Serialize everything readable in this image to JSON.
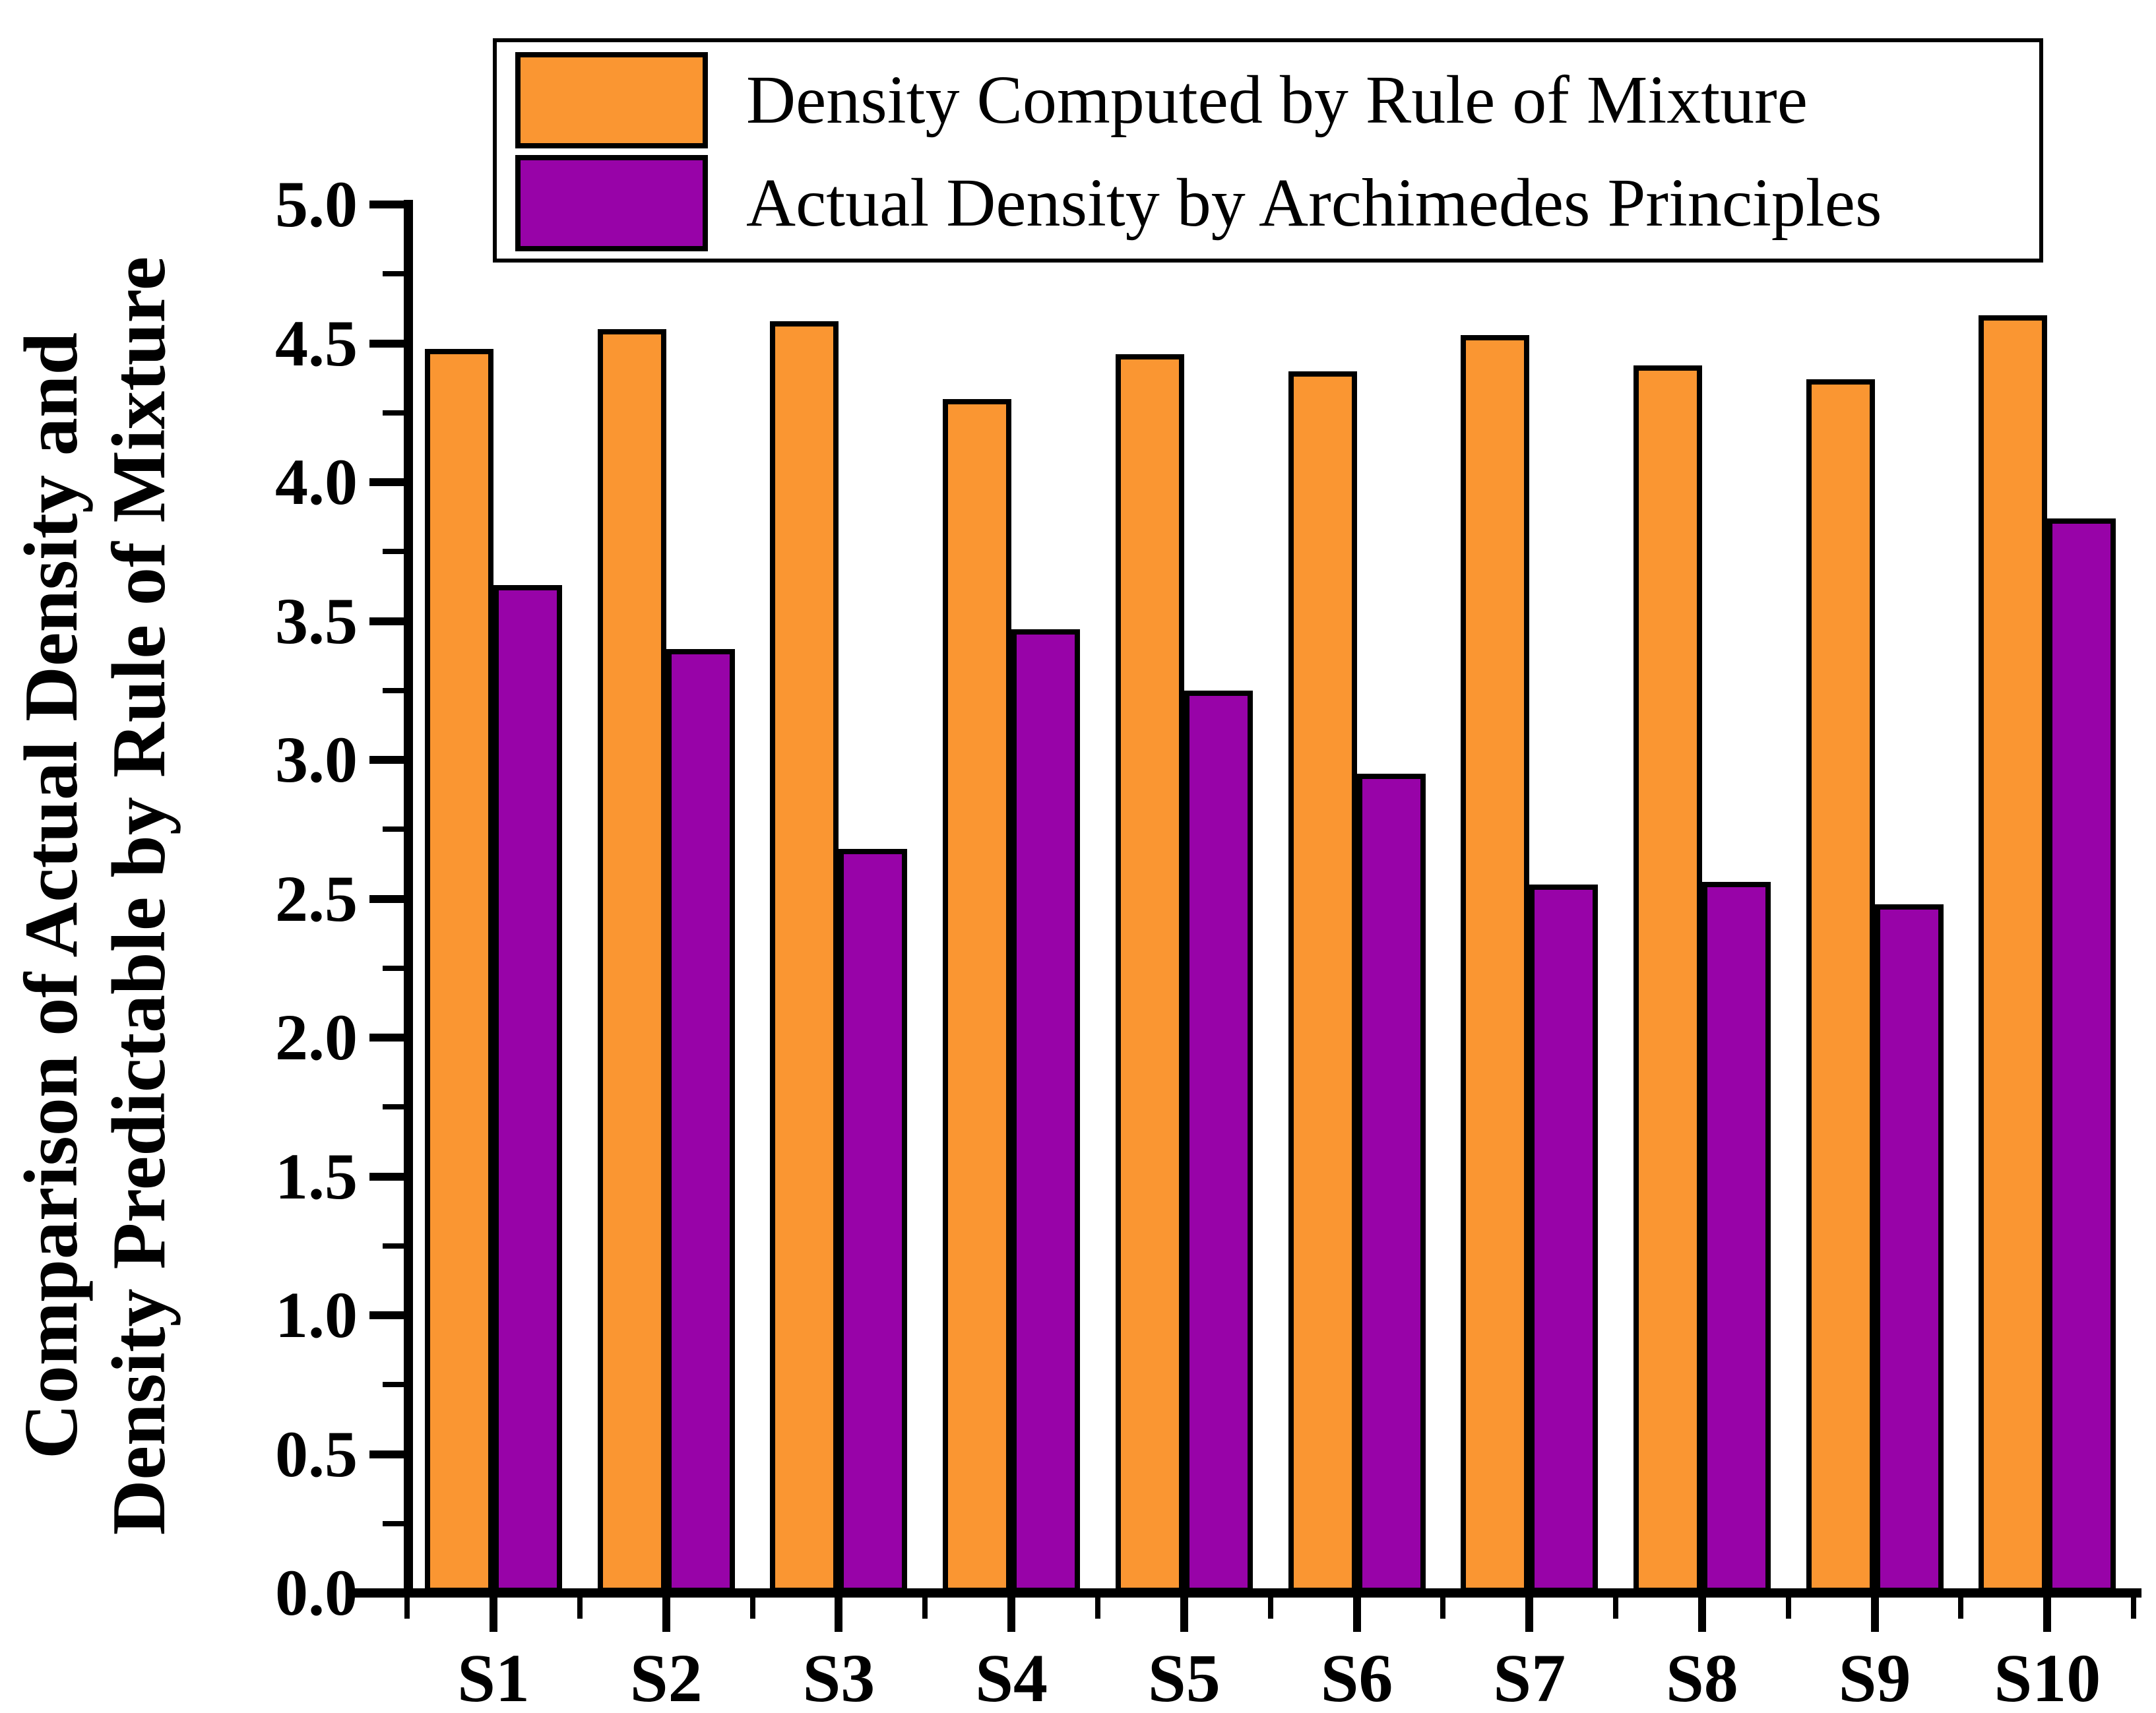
{
  "chart_data": {
    "type": "bar",
    "title": "",
    "categories": [
      "S1",
      "S2",
      "S3",
      "S4",
      "S5",
      "S6",
      "S7",
      "S8",
      "S9",
      "S10"
    ],
    "series": [
      {
        "name": "Density Computed by Rule of Mixture",
        "color": "#FA9632",
        "values": [
          4.48,
          4.55,
          4.58,
          4.3,
          4.46,
          4.4,
          4.53,
          4.42,
          4.37,
          4.6
        ]
      },
      {
        "name": "Actual Density by Archimedes Principles",
        "color": "#9803A8",
        "values": [
          3.63,
          3.4,
          2.68,
          3.47,
          3.25,
          2.95,
          2.55,
          2.56,
          2.48,
          3.87
        ]
      }
    ],
    "xlabel": "",
    "ylabel_line1": "Comparison of Actual Density and",
    "ylabel_line2": "Density Predictable by Rule of Mixture",
    "ylim": [
      0.0,
      5.0
    ],
    "ytick_step": 0.5,
    "yminor_step": 0.25,
    "ytick_labels": [
      "0.0",
      "0.5",
      "1.0",
      "1.5",
      "2.0",
      "2.5",
      "3.0",
      "3.5",
      "4.0",
      "4.5",
      "5.0"
    ],
    "grid": false,
    "legend_position": "top-center",
    "bar_edge_color": "#000000",
    "background_color": "#ffffff"
  }
}
